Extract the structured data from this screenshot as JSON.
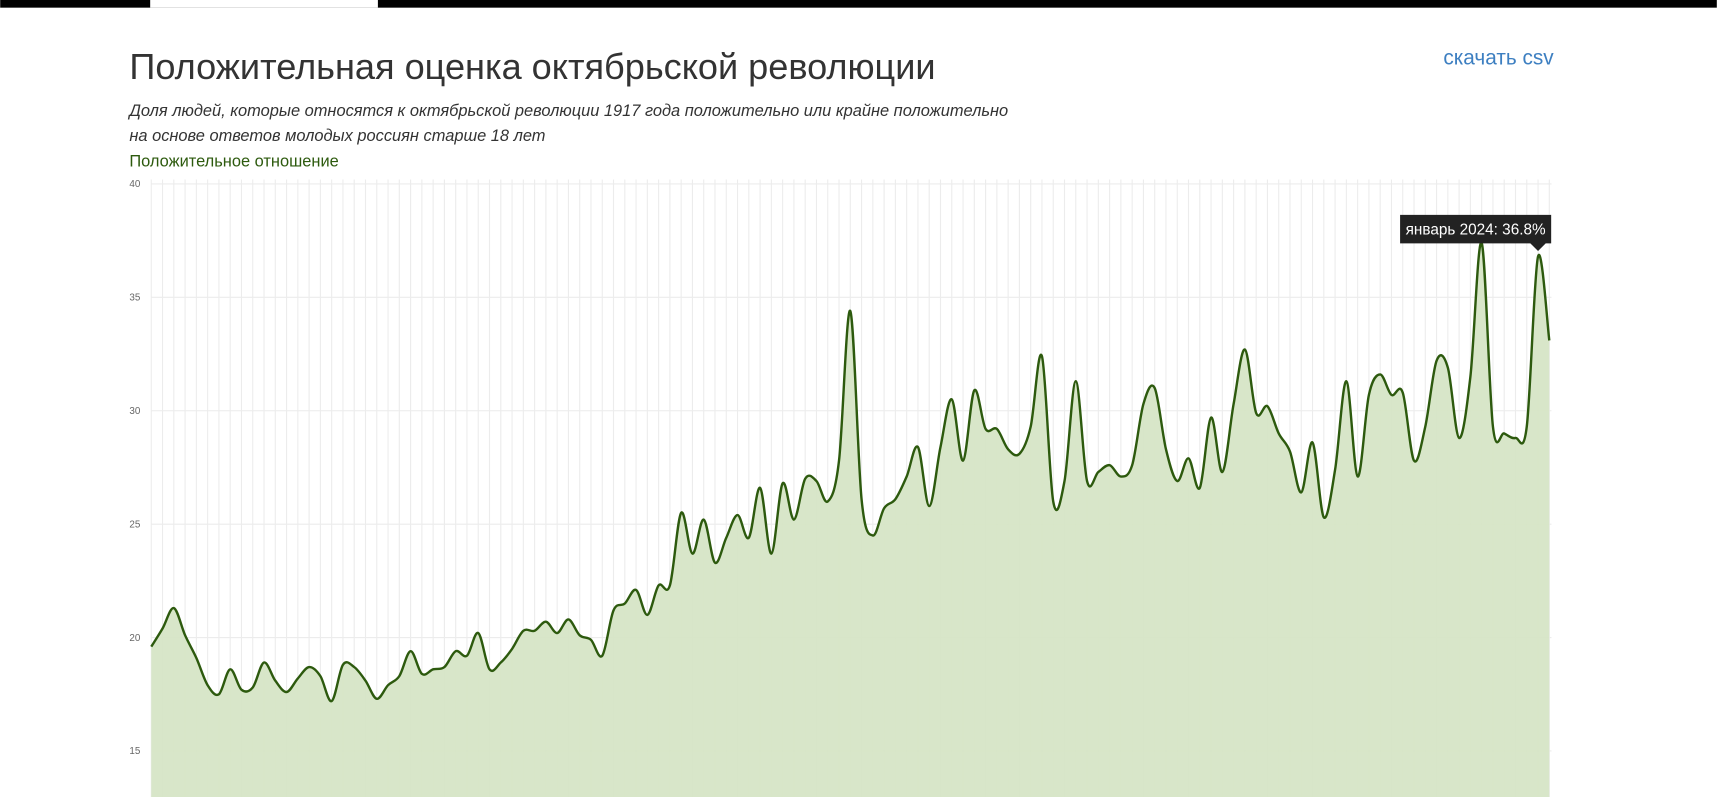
{
  "chart_data": {
    "type": "area",
    "title": "Положительная оценка октябрьской революции",
    "subtitle": [
      "Доля людей, которые относятся к октябрьской революции 1917 года положительно или крайне положительно",
      "на основе ответов молодых россиян старше 18 лет"
    ],
    "download_link": "скачать csv",
    "ylim": [
      13,
      40
    ],
    "yticks": [
      15,
      20,
      25,
      30,
      35,
      40
    ],
    "grid": true,
    "categories": [
      null,
      null,
      null,
      null,
      null,
      null,
      null,
      null,
      null,
      null,
      null,
      null,
      null,
      null,
      null,
      null,
      null,
      null,
      null,
      null,
      null,
      null,
      null,
      null,
      null,
      null,
      null,
      null,
      null,
      null,
      null,
      null,
      null,
      null,
      null,
      null,
      null,
      null,
      null,
      null,
      null,
      null,
      null,
      null,
      null,
      null,
      null,
      null,
      null,
      null,
      null,
      null,
      null,
      null,
      null,
      null,
      null,
      null,
      null,
      null,
      null,
      null,
      null,
      null,
      null,
      null,
      null,
      null,
      null,
      null,
      null,
      null,
      null,
      null,
      null,
      null,
      null,
      null,
      null,
      null,
      null,
      null,
      null,
      null,
      null,
      null,
      null,
      null,
      null,
      null,
      null,
      null,
      null,
      null,
      null,
      null,
      null,
      null,
      null,
      null,
      null,
      null,
      null,
      null,
      null,
      null,
      null,
      null,
      null,
      null,
      null,
      null,
      null,
      null,
      null,
      null,
      null,
      null,
      null,
      null,
      null,
      null,
      null,
      null,
      null
    ],
    "series": [
      {
        "name": "Положительное отношение",
        "color": "#2d5a0e",
        "fill": "#d6e5c6",
        "values": [
          19.6,
          20.4,
          21.3,
          20.1,
          19.1,
          17.9,
          17.5,
          18.6,
          17.7,
          17.8,
          18.9,
          18.1,
          17.6,
          18.2,
          18.7,
          18.3,
          17.2,
          18.8,
          18.7,
          18.1,
          17.3,
          17.9,
          18.3,
          19.4,
          18.4,
          18.6,
          18.7,
          19.4,
          19.2,
          20.2,
          18.6,
          18.9,
          19.5,
          20.3,
          20.3,
          20.7,
          20.2,
          20.8,
          20.1,
          19.9,
          19.2,
          21.2,
          21.5,
          22.1,
          21.0,
          22.3,
          22.3,
          25.5,
          23.7,
          25.2,
          23.3,
          24.4,
          25.4,
          24.4,
          26.6,
          23.7,
          26.8,
          25.2,
          27.0,
          26.9,
          26.0,
          27.8,
          34.4,
          26.1,
          24.5,
          25.7,
          26.1,
          27.1,
          28.4,
          25.8,
          28.4,
          30.5,
          27.8,
          30.9,
          29.2,
          29.2,
          28.3,
          28.1,
          29.3,
          32.4,
          26.0,
          26.9,
          31.3,
          26.9,
          27.3,
          27.6,
          27.1,
          27.6,
          30.3,
          31.0,
          28.3,
          26.9,
          27.9,
          26.6,
          29.7,
          27.3,
          30.3,
          32.7,
          29.9,
          30.2,
          29.0,
          28.2,
          26.4,
          28.6,
          25.3,
          27.4,
          31.3,
          27.1,
          30.7,
          31.6,
          30.7,
          30.8,
          27.8,
          29.3,
          32.2,
          31.9,
          28.8,
          31.5,
          37.4,
          29.3,
          29.0,
          28.8,
          29.3,
          36.8,
          33.1
        ],
        "value_labels": [
          null,
          null,
          null,
          null,
          null,
          null,
          null,
          null,
          null,
          null,
          null,
          null,
          null,
          null,
          null,
          null,
          null,
          null,
          null,
          null,
          null,
          null,
          null,
          null,
          null,
          null,
          null,
          null,
          null,
          null,
          null,
          null,
          null,
          null,
          null,
          null,
          null,
          null,
          null,
          null,
          null,
          null,
          null,
          null,
          null,
          null,
          null,
          null,
          null,
          null,
          null,
          null,
          null,
          null,
          null,
          null,
          null,
          null,
          null,
          null,
          null,
          null,
          null,
          null,
          null,
          null,
          null,
          null,
          null,
          null,
          null,
          null,
          null,
          null,
          null,
          null,
          null,
          null,
          null,
          null,
          null,
          null,
          null,
          null,
          null,
          null,
          null,
          null,
          null,
          null,
          null,
          null,
          null,
          null,
          null,
          null,
          null,
          null,
          null,
          null,
          null,
          null,
          null,
          null,
          null,
          null,
          null,
          null,
          null,
          null,
          null,
          null,
          null,
          null,
          null,
          null,
          null,
          null,
          null,
          null,
          null,
          null,
          null,
          "январь 2024: 36.8%",
          null
        ]
      }
    ]
  }
}
